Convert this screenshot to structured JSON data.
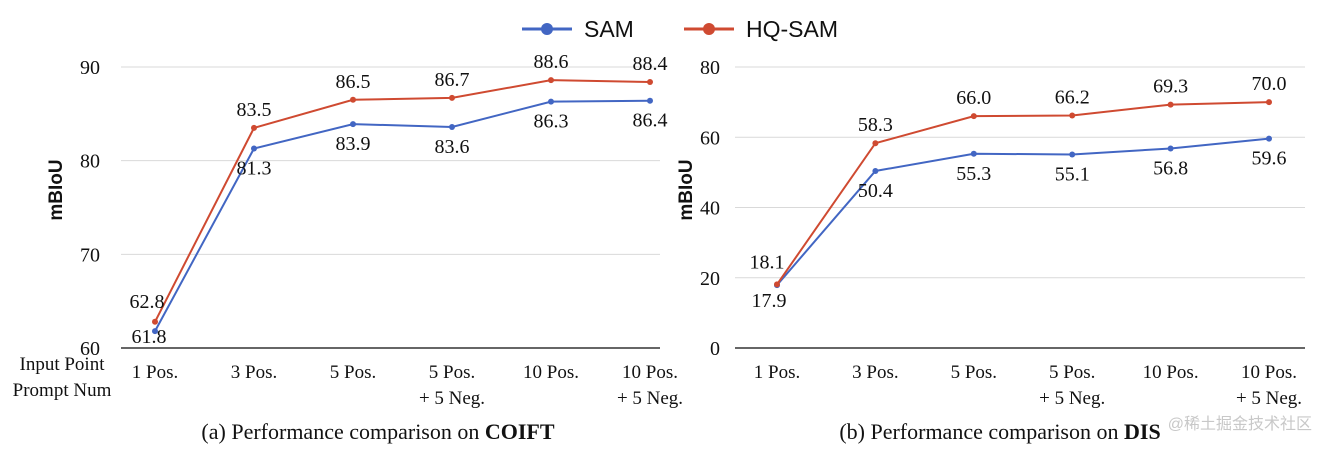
{
  "legend": [
    {
      "name": "SAM",
      "color": "#4266c3"
    },
    {
      "name": "HQ-SAM",
      "color": "#cf4a31"
    }
  ],
  "input_label": [
    "Input Point",
    "Prompt Num"
  ],
  "watermark": "@稀土掘金技术社区",
  "chart_data": [
    {
      "type": "line",
      "title": "(a) Performance comparison on ",
      "title_bold": "COIFT",
      "ylabel": "mBIoU",
      "categories": [
        "1 Pos.",
        "3 Pos.",
        "5 Pos.",
        "5 Pos.\n+ 5 Neg.",
        "10 Pos.",
        "10 Pos.\n+ 5 Neg."
      ],
      "ylim": [
        60,
        90
      ],
      "yticks": [
        60,
        70,
        80,
        90
      ],
      "grid": true,
      "series": [
        {
          "name": "SAM",
          "color": "#4266c3",
          "values": [
            61.8,
            81.3,
            83.9,
            83.6,
            86.3,
            86.4
          ]
        },
        {
          "name": "HQ-SAM",
          "color": "#cf4a31",
          "values": [
            62.8,
            83.5,
            86.5,
            86.7,
            88.6,
            88.4
          ]
        }
      ]
    },
    {
      "type": "line",
      "title": "(b) Performance comparison on ",
      "title_bold": "DIS",
      "ylabel": "mBIoU",
      "categories": [
        "1 Pos.",
        "3 Pos.",
        "5 Pos.",
        "5 Pos.\n+ 5 Neg.",
        "10 Pos.",
        "10 Pos.\n+ 5 Neg."
      ],
      "ylim": [
        0,
        80
      ],
      "yticks": [
        0,
        20,
        40,
        60,
        80
      ],
      "grid": true,
      "series": [
        {
          "name": "SAM",
          "color": "#4266c3",
          "values": [
            17.9,
            50.4,
            55.3,
            55.1,
            56.8,
            59.6
          ]
        },
        {
          "name": "HQ-SAM",
          "color": "#cf4a31",
          "values": [
            18.1,
            58.3,
            66.0,
            66.2,
            69.3,
            70.0
          ]
        }
      ]
    }
  ]
}
